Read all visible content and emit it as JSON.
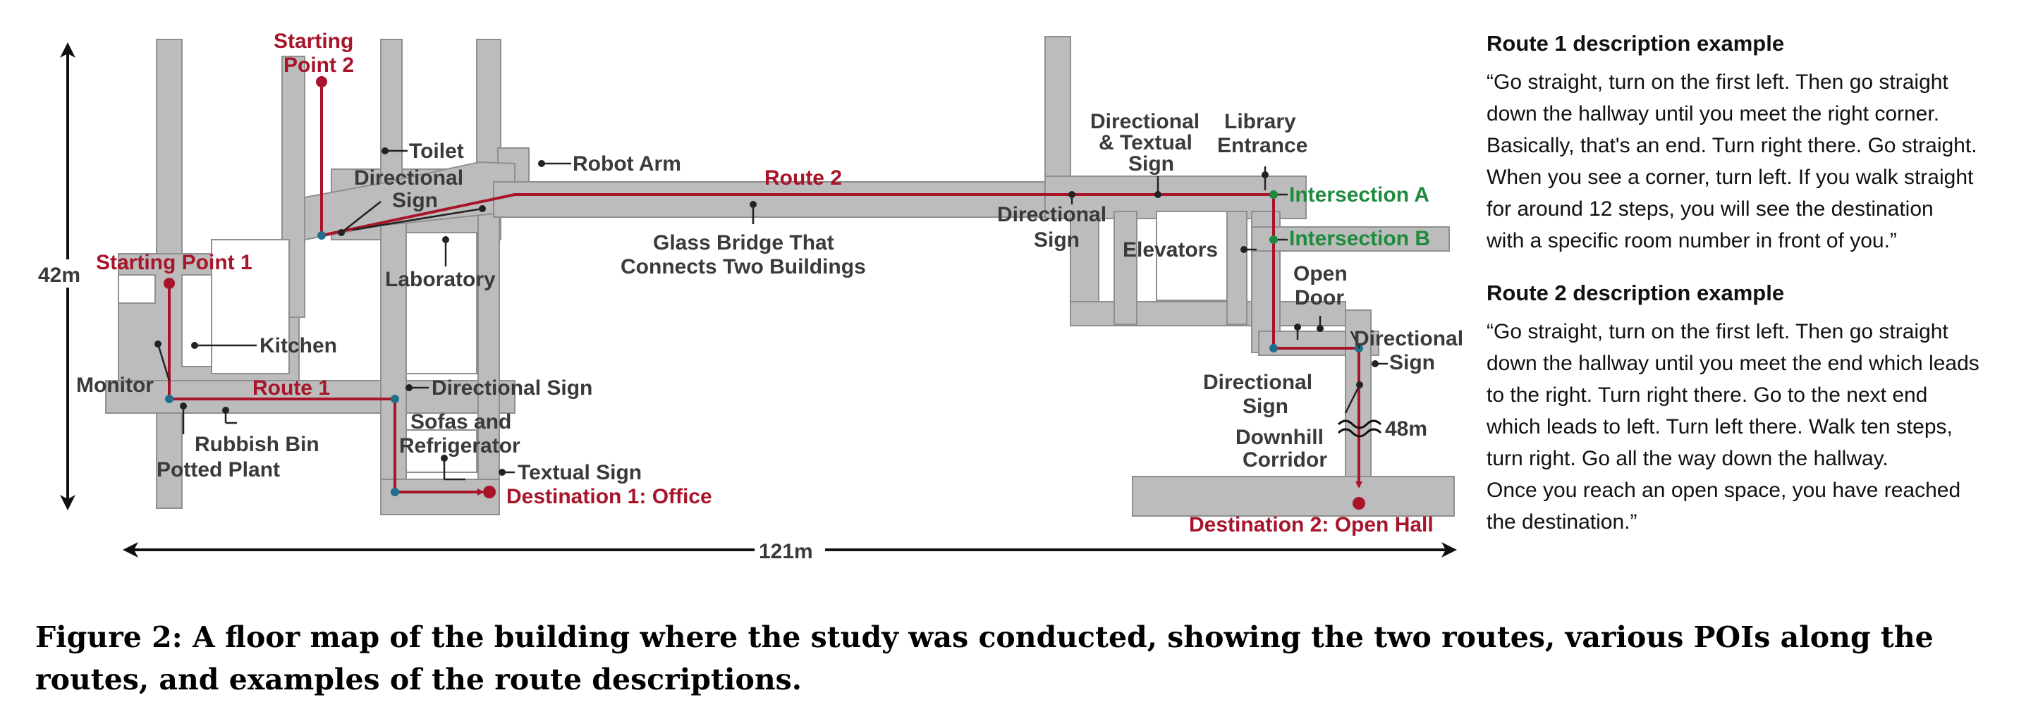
{
  "map": {
    "dimensions": {
      "height": "42m",
      "width": "121m",
      "corridor_length": "48m"
    },
    "routes": {
      "route1": "Route 1",
      "route2": "Route 2"
    },
    "starting_points": {
      "sp1": "Starting Point 1",
      "sp2_line1": "Starting",
      "sp2_line2": "Point 2"
    },
    "destinations": {
      "d1": "Destination 1: Office",
      "d2": "Destination 2: Open Hall"
    },
    "intersections": {
      "a": "Intersection A",
      "b": "Intersection B"
    },
    "pois": {
      "toilet": "Toilet",
      "robot_arm": "Robot Arm",
      "directional_sign_line1": "Directional",
      "sign_line2": "Sign",
      "glass_bridge_line1": "Glass Bridge That",
      "glass_bridge_line2": "Connects Two Buildings",
      "laboratory": "Laboratory",
      "kitchen": "Kitchen",
      "monitor": "Monitor",
      "rubbish_bin": "Rubbish Bin",
      "potted_plant": "Potted Plant",
      "directional_sign": "Directional Sign",
      "sofas_line1": "Sofas and",
      "sofas_line2": "Refrigerator",
      "textual_sign": "Textual Sign",
      "dir_textual_line2": "& Textual",
      "library_line1": "Library",
      "library_line2": "Entrance",
      "elevators": "Elevators",
      "open_door_line1": "Open",
      "open_door_line2": "Door",
      "downhill_line1": "Downhill",
      "downhill_line2": "Corridor"
    },
    "colors": {
      "floor": "#bcbcbc",
      "wall": "#8f8f8f",
      "route": "#a8142a",
      "intersection": "#1e8a3e",
      "poi_dot": "#1f6f8b"
    }
  },
  "descriptions": [
    {
      "title": "Route 1 description example",
      "text": "“Go straight, turn on the first left. Then go straight\ndown the hallway until you meet the right corner.\nBasically, that's an end. Turn right there. Go straight.\nWhen you see a corner, turn left. If you walk straight\nfor around 12 steps, you will see the destination\nwith a specific room number in front of you.”"
    },
    {
      "title": "Route 2 description example",
      "text": "“Go straight, turn on the first left. Then go straight\ndown the hallway until you meet the end which leads\nto the right. Turn right there. Go to the next end\nwhich leads to left. Turn left there. Walk ten steps,\nturn right. Go all the way down the hallway.\nOnce you reach an open space, you have reached\n the destination.”"
    }
  ],
  "caption": "Figure 2: A floor map of the building where the study was conducted, showing the two routes, various POIs along the routes, and examples of the route descriptions."
}
